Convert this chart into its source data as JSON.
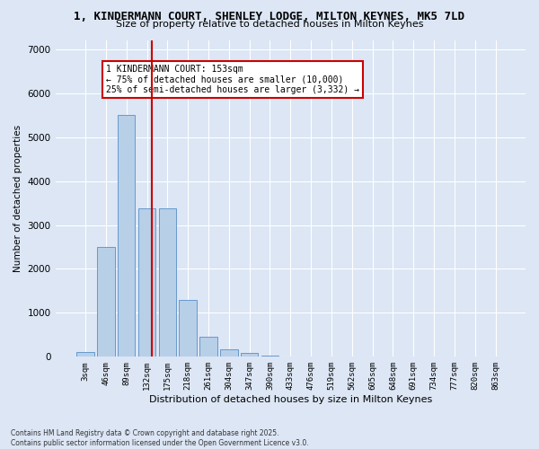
{
  "title_line1": "1, KINDERMANN COURT, SHENLEY LODGE, MILTON KEYNES, MK5 7LD",
  "title_line2": "Size of property relative to detached houses in Milton Keynes",
  "xlabel": "Distribution of detached houses by size in Milton Keynes",
  "ylabel": "Number of detached properties",
  "bar_labels": [
    "3sqm",
    "46sqm",
    "89sqm",
    "132sqm",
    "175sqm",
    "218sqm",
    "261sqm",
    "304sqm",
    "347sqm",
    "390sqm",
    "433sqm",
    "476sqm",
    "519sqm",
    "562sqm",
    "605sqm",
    "648sqm",
    "691sqm",
    "734sqm",
    "777sqm",
    "820sqm",
    "863sqm"
  ],
  "bar_values": [
    100,
    2500,
    5500,
    3380,
    3380,
    1300,
    460,
    175,
    90,
    35,
    0,
    0,
    0,
    0,
    0,
    0,
    0,
    0,
    0,
    0,
    0
  ],
  "bar_color": "#b8cfe8",
  "bar_edge_color": "#6699cc",
  "background_color": "#dce6f5",
  "grid_color": "#ffffff",
  "vline_x_data": 3.25,
  "vline_color": "#cc0000",
  "annotation_text": "1 KINDERMANN COURT: 153sqm\n← 75% of detached houses are smaller (10,000)\n25% of semi-detached houses are larger (3,332) →",
  "annotation_box_color": "#ffffff",
  "annotation_box_edge": "#cc0000",
  "ylim": [
    0,
    7200
  ],
  "yticks": [
    0,
    1000,
    2000,
    3000,
    4000,
    5000,
    6000,
    7000
  ],
  "footer_line1": "Contains HM Land Registry data © Crown copyright and database right 2025.",
  "footer_line2": "Contains public sector information licensed under the Open Government Licence v3.0."
}
